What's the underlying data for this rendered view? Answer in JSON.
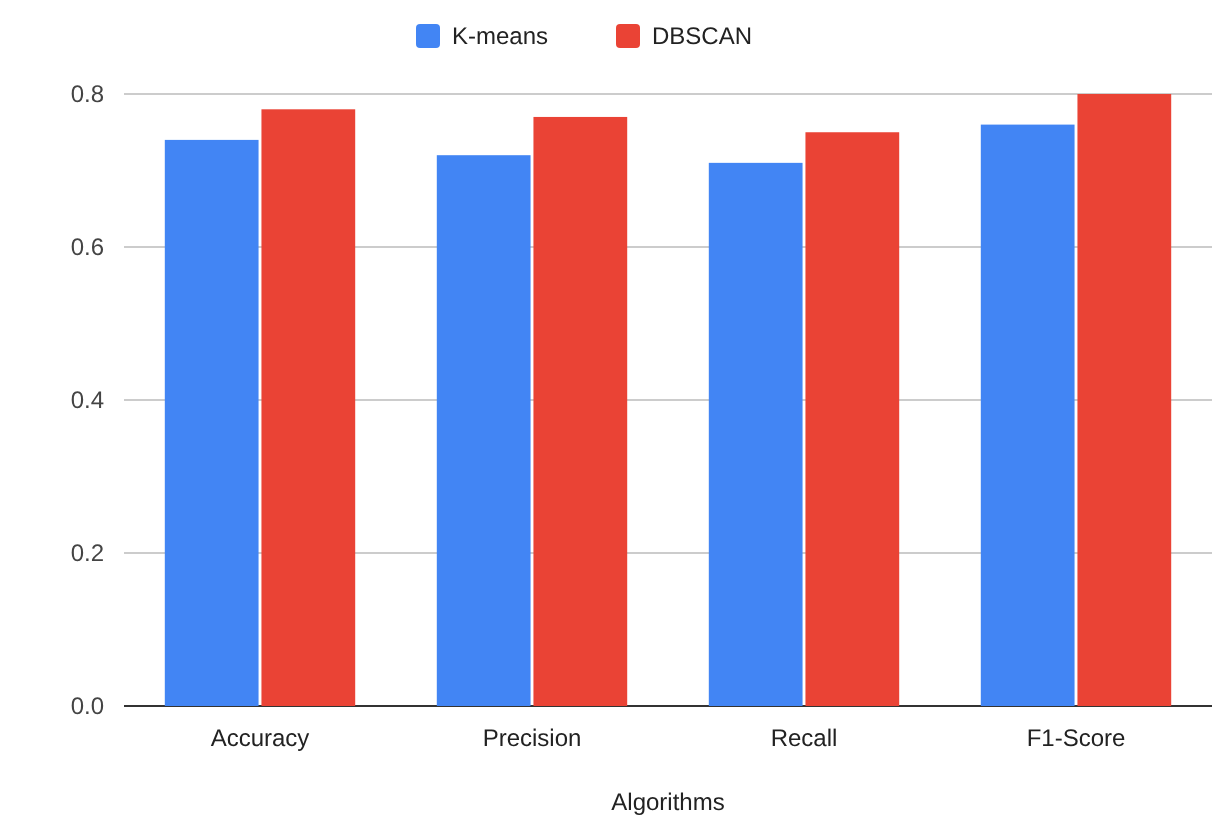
{
  "chart_data": {
    "type": "bar",
    "xlabel": "Algorithms",
    "categories": [
      "Accuracy",
      "Precision",
      "Recall",
      "F1-Score"
    ],
    "series": [
      {
        "name": "K-means",
        "color": "#4285f4",
        "values": [
          0.74,
          0.72,
          0.71,
          0.76
        ]
      },
      {
        "name": "DBSCAN",
        "color": "#ea4335",
        "values": [
          0.78,
          0.77,
          0.75,
          0.8
        ]
      }
    ],
    "ylim": [
      0,
      0.8
    ],
    "yticks": [
      {
        "value": 0,
        "label": "0.0"
      },
      {
        "value": 0.2,
        "label": "0.2"
      },
      {
        "value": 0.4,
        "label": "0.4"
      },
      {
        "value": 0.6,
        "label": "0.6"
      },
      {
        "value": 0.8,
        "label": "0.8"
      }
    ],
    "grid": "y",
    "legend": "top"
  }
}
